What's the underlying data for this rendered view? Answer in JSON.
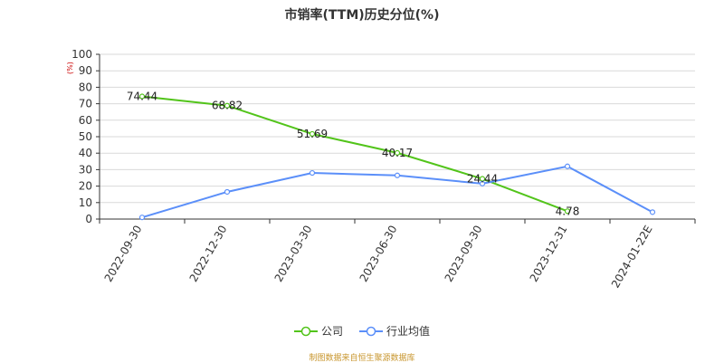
{
  "chart_data": {
    "type": "line",
    "title": "市销率(TTM)历史分位(%)",
    "ylabel": "(%)",
    "ylim": [
      0,
      100
    ],
    "yticks": [
      0,
      10,
      20,
      30,
      40,
      50,
      60,
      70,
      80,
      90,
      100
    ],
    "categories": [
      "2022-09-30",
      "2022-12-30",
      "2023-03-30",
      "2023-06-30",
      "2023-09-30",
      "2023-12-31",
      "2024-01-22E"
    ],
    "series": [
      {
        "name": "公司",
        "color": "#52c41a",
        "values": [
          74.44,
          68.82,
          51.69,
          40.17,
          24.44,
          4.78,
          null
        ],
        "show_labels": true
      },
      {
        "name": "行业均值",
        "color": "#5b8ff9",
        "values": [
          1,
          16.5,
          28,
          26.5,
          21.5,
          32,
          4.2
        ],
        "show_labels": false
      }
    ],
    "grid": true,
    "legend_position": "bottom-center"
  },
  "footer": {
    "source": "制图数据来自恒生聚源数据库"
  }
}
